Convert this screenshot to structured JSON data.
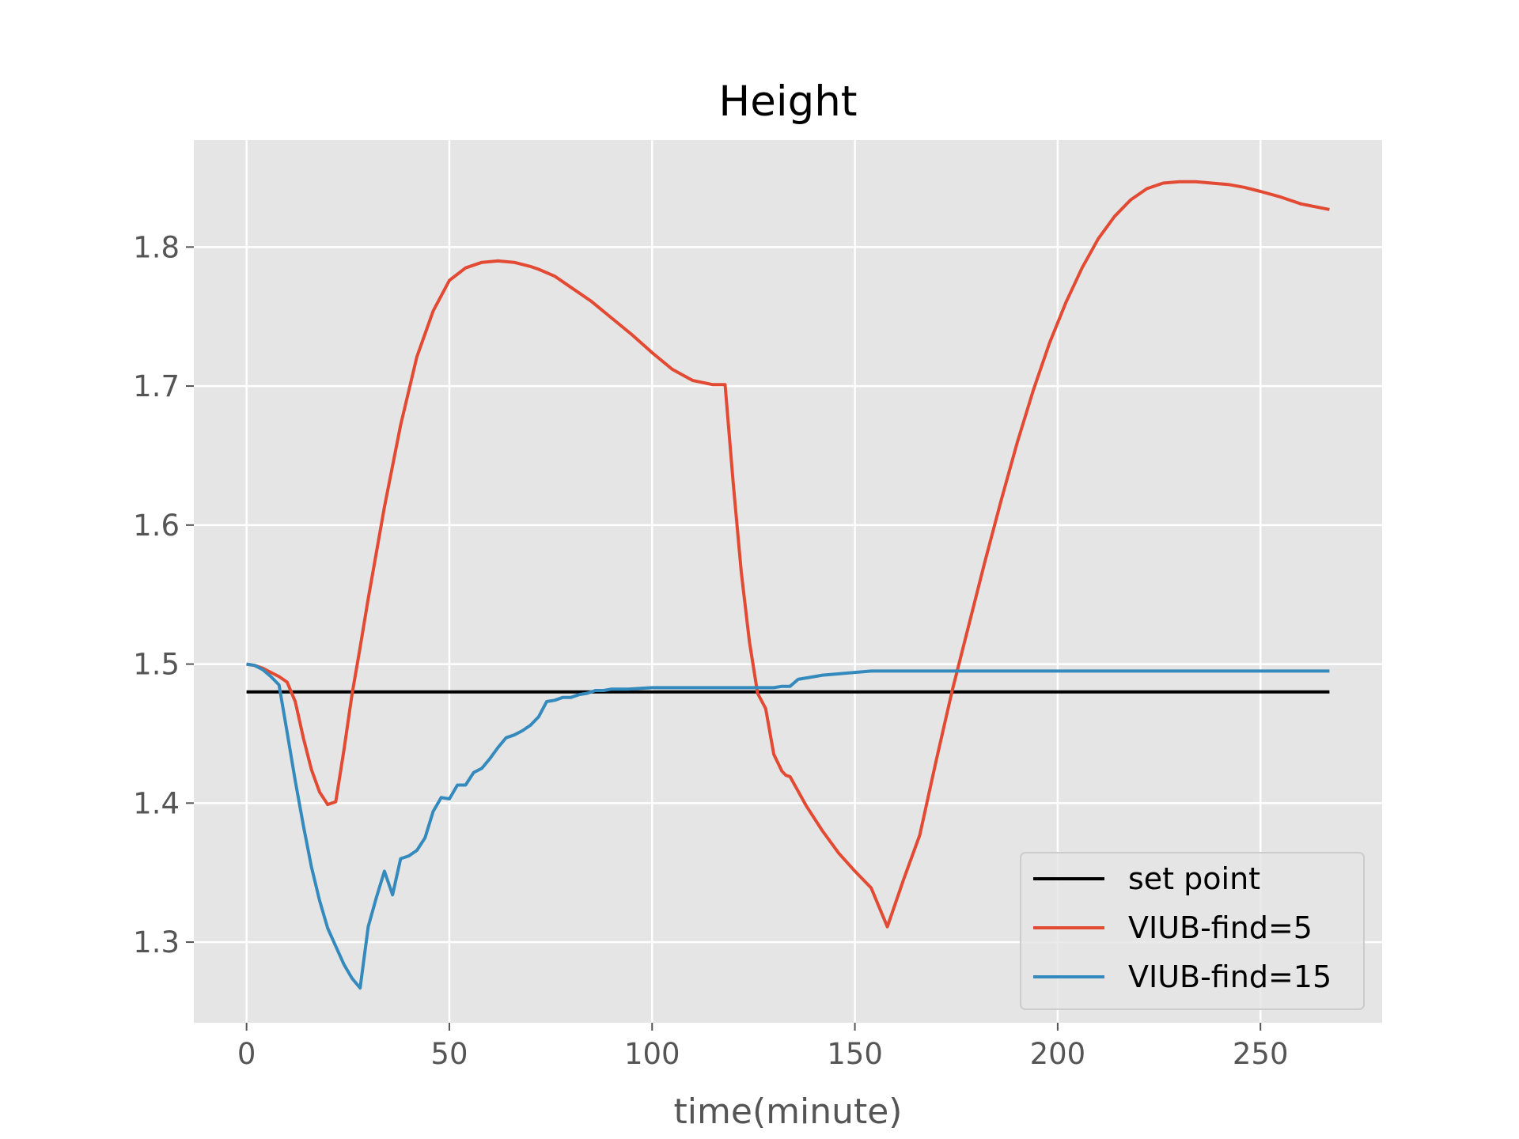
{
  "chart_data": {
    "type": "line",
    "title": "Height",
    "xlabel": "time(minute)",
    "ylabel": "",
    "xlim": [
      -13,
      280
    ],
    "ylim": [
      1.242,
      1.877
    ],
    "xticks": [
      0,
      50,
      100,
      150,
      200,
      250
    ],
    "xtick_labels": [
      "0",
      "50",
      "100",
      "150",
      "200",
      "250"
    ],
    "yticks": [
      1.3,
      1.4,
      1.5,
      1.6,
      1.7,
      1.8
    ],
    "ytick_labels": [
      "1.3",
      "1.4",
      "1.5",
      "1.6",
      "1.7",
      "1.8"
    ],
    "grid": true,
    "legend_position": "lower right",
    "background": "#e5e5e5",
    "series": [
      {
        "name": "set point",
        "color": "#000000",
        "x": [
          0,
          267
        ],
        "y": [
          1.48,
          1.48
        ]
      },
      {
        "name": "VIUB-find=5",
        "color": "#e24a33",
        "x": [
          0,
          2,
          4,
          6,
          8,
          10,
          12,
          14,
          16,
          18,
          20,
          22,
          24,
          26,
          28,
          30,
          34,
          38,
          42,
          46,
          50,
          54,
          58,
          62,
          66,
          70,
          72,
          76,
          80,
          85,
          90,
          95,
          100,
          105,
          110,
          115,
          118,
          120,
          122,
          124,
          126,
          128,
          130,
          132,
          133,
          134,
          138,
          142,
          146,
          150,
          154,
          158,
          162,
          166,
          170,
          174,
          178,
          182,
          186,
          190,
          194,
          198,
          202,
          206,
          210,
          214,
          218,
          222,
          226,
          230,
          234,
          238,
          242,
          246,
          250,
          255,
          260,
          267
        ],
        "y": [
          1.5,
          1.499,
          1.497,
          1.494,
          1.491,
          1.487,
          1.473,
          1.447,
          1.424,
          1.408,
          1.399,
          1.401,
          1.438,
          1.478,
          1.512,
          1.547,
          1.613,
          1.672,
          1.721,
          1.754,
          1.776,
          1.785,
          1.789,
          1.79,
          1.789,
          1.786,
          1.784,
          1.779,
          1.771,
          1.761,
          1.749,
          1.737,
          1.724,
          1.712,
          1.704,
          1.701,
          1.701,
          1.63,
          1.566,
          1.516,
          1.479,
          1.468,
          1.435,
          1.423,
          1.42,
          1.419,
          1.398,
          1.38,
          1.364,
          1.351,
          1.339,
          1.311,
          1.345,
          1.377,
          1.43,
          1.481,
          1.527,
          1.573,
          1.617,
          1.659,
          1.697,
          1.731,
          1.76,
          1.785,
          1.806,
          1.822,
          1.834,
          1.842,
          1.846,
          1.847,
          1.847,
          1.846,
          1.845,
          1.843,
          1.84,
          1.836,
          1.831,
          1.827
        ]
      },
      {
        "name": "VIUB-find=15",
        "color": "#348abd",
        "x": [
          0,
          2,
          4,
          6,
          8,
          10,
          12,
          14,
          16,
          18,
          20,
          22,
          24,
          26,
          28,
          30,
          32,
          34,
          36,
          38,
          40,
          42,
          44,
          46,
          48,
          50,
          52,
          54,
          56,
          58,
          60,
          62,
          64,
          66,
          68,
          70,
          72,
          74,
          76,
          78,
          80,
          82,
          84,
          86,
          88,
          90,
          94,
          100,
          110,
          120,
          130,
          132,
          134,
          136,
          138,
          142,
          146,
          150,
          154,
          160,
          170,
          180,
          200,
          220,
          240,
          267
        ],
        "y": [
          1.5,
          1.499,
          1.496,
          1.491,
          1.485,
          1.451,
          1.416,
          1.384,
          1.354,
          1.33,
          1.31,
          1.297,
          1.284,
          1.274,
          1.267,
          1.311,
          1.332,
          1.351,
          1.334,
          1.36,
          1.362,
          1.366,
          1.375,
          1.394,
          1.404,
          1.403,
          1.413,
          1.413,
          1.422,
          1.425,
          1.432,
          1.44,
          1.447,
          1.449,
          1.452,
          1.456,
          1.462,
          1.473,
          1.474,
          1.476,
          1.476,
          1.478,
          1.479,
          1.481,
          1.481,
          1.482,
          1.482,
          1.483,
          1.483,
          1.483,
          1.483,
          1.484,
          1.484,
          1.489,
          1.49,
          1.492,
          1.493,
          1.494,
          1.495,
          1.495,
          1.495,
          1.495,
          1.495,
          1.495,
          1.495,
          1.495
        ]
      }
    ]
  }
}
